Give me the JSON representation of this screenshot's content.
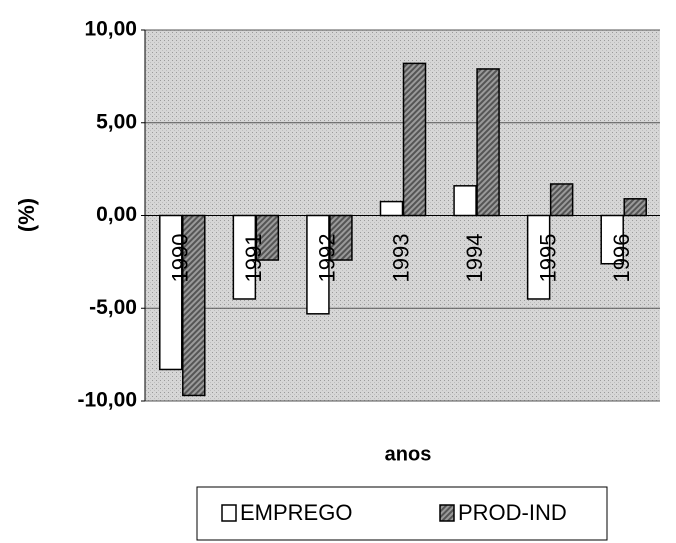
{
  "chart_data": {
    "type": "bar",
    "categories": [
      "1990",
      "1991",
      "1992",
      "1993",
      "1994",
      "1995",
      "1996"
    ],
    "series": [
      {
        "name": "EMPREGO",
        "color": "#ffffff",
        "values": [
          -8.3,
          -4.5,
          -5.3,
          0.75,
          1.6,
          -4.5,
          -2.6
        ]
      },
      {
        "name": "PROD-IND",
        "color": "#8a8a8a",
        "values": [
          -9.7,
          -2.4,
          -2.4,
          8.2,
          7.9,
          1.7,
          0.9
        ]
      }
    ],
    "xlabel": "anos",
    "ylabel": "(%)",
    "ylim": [
      -10,
      10
    ],
    "yticks": [
      {
        "value": 10,
        "label": "10,00"
      },
      {
        "value": 5,
        "label": "5,00"
      },
      {
        "value": 0,
        "label": "0,00"
      },
      {
        "value": -5,
        "label": "-5,00"
      },
      {
        "value": -10,
        "label": "-10,00"
      }
    ],
    "grid": true,
    "legend": "bottom"
  }
}
